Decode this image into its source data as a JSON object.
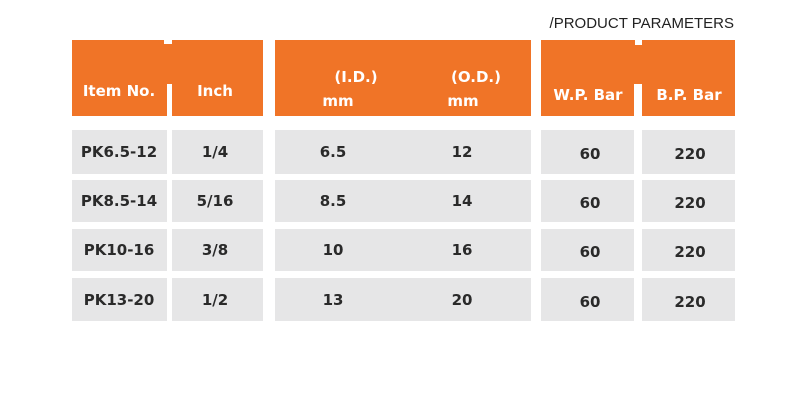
{
  "table": {
    "title": "/PRODUCT PARAMETERS",
    "columns": [
      {
        "title": "Item No."
      },
      {
        "title": "Inch"
      },
      {
        "title": "(I.D.)",
        "unit": "mm"
      },
      {
        "title": "(O.D.)",
        "unit": "mm"
      },
      {
        "title": "W.P. Bar"
      },
      {
        "title": "B.P. Bar"
      }
    ],
    "rows": [
      [
        "PK6.5-12",
        "1/4",
        6.5,
        12,
        60,
        220
      ],
      [
        "PK8.5-14",
        "5/16",
        8.5,
        14,
        60,
        220
      ],
      [
        "PK10-16",
        "3/8",
        10,
        16,
        60,
        220
      ],
      [
        "PK13-20",
        "1/2",
        13,
        20,
        60,
        220
      ]
    ]
  }
}
